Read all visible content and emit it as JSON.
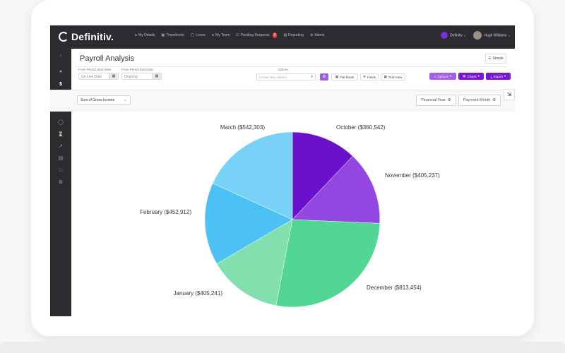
{
  "app": {
    "brand": "Definitiv."
  },
  "topnav": {
    "items": [
      {
        "label": "My Details",
        "icon": "person-icon"
      },
      {
        "label": "Timesheets",
        "icon": "calendar-icon"
      },
      {
        "label": "Leave",
        "icon": "clock-icon"
      },
      {
        "label": "My Team",
        "icon": "team-icon"
      },
      {
        "label": "Pending Requests",
        "icon": "check-icon",
        "badge": "6"
      },
      {
        "label": "Reporting",
        "icon": "chart-icon"
      },
      {
        "label": "Admin",
        "icon": "gear-icon"
      }
    ],
    "org": "Definitiv",
    "user": "Hugh Williams"
  },
  "page": {
    "title": "Payroll Analysis",
    "simple_label": "Simple"
  },
  "filters": {
    "start_label": "From Period Start Date",
    "start_value": "Go Live Date",
    "end_label": "From Period End Date",
    "end_value": "Ongoing",
    "options_label": "Options",
    "options_placeholder": "Create New Variant"
  },
  "toolbar": {
    "flat_mode": "Flat Mode",
    "fields": "Fields",
    "grid_view": "Grid View",
    "options": "Options",
    "charts": "Charts",
    "export": "Export"
  },
  "pivot": {
    "measure": "Sum of Gross Income",
    "dim1": "Financial Year",
    "dim2": "Payment Month"
  },
  "colors": {
    "accent": "#7a16d6",
    "accent_light": "#a35ee8",
    "topbar": "#2b2b30"
  },
  "chart_data": {
    "type": "pie",
    "categories": [
      "October",
      "November",
      "December",
      "January",
      "February",
      "March"
    ],
    "values": [
      360542,
      405237,
      813454,
      405241,
      452912,
      542303
    ],
    "labels": [
      "October ($360,542)",
      "November ($405,237)",
      "December ($813,454)",
      "January ($405,241)",
      "February ($452,912)",
      "March ($542,303)"
    ],
    "colors": [
      "#6a11cc",
      "#9147e0",
      "#52d694",
      "#82e0ae",
      "#4cc2f4",
      "#78d2f7"
    ],
    "start": "12 o'clock",
    "direction": "clockwise"
  }
}
